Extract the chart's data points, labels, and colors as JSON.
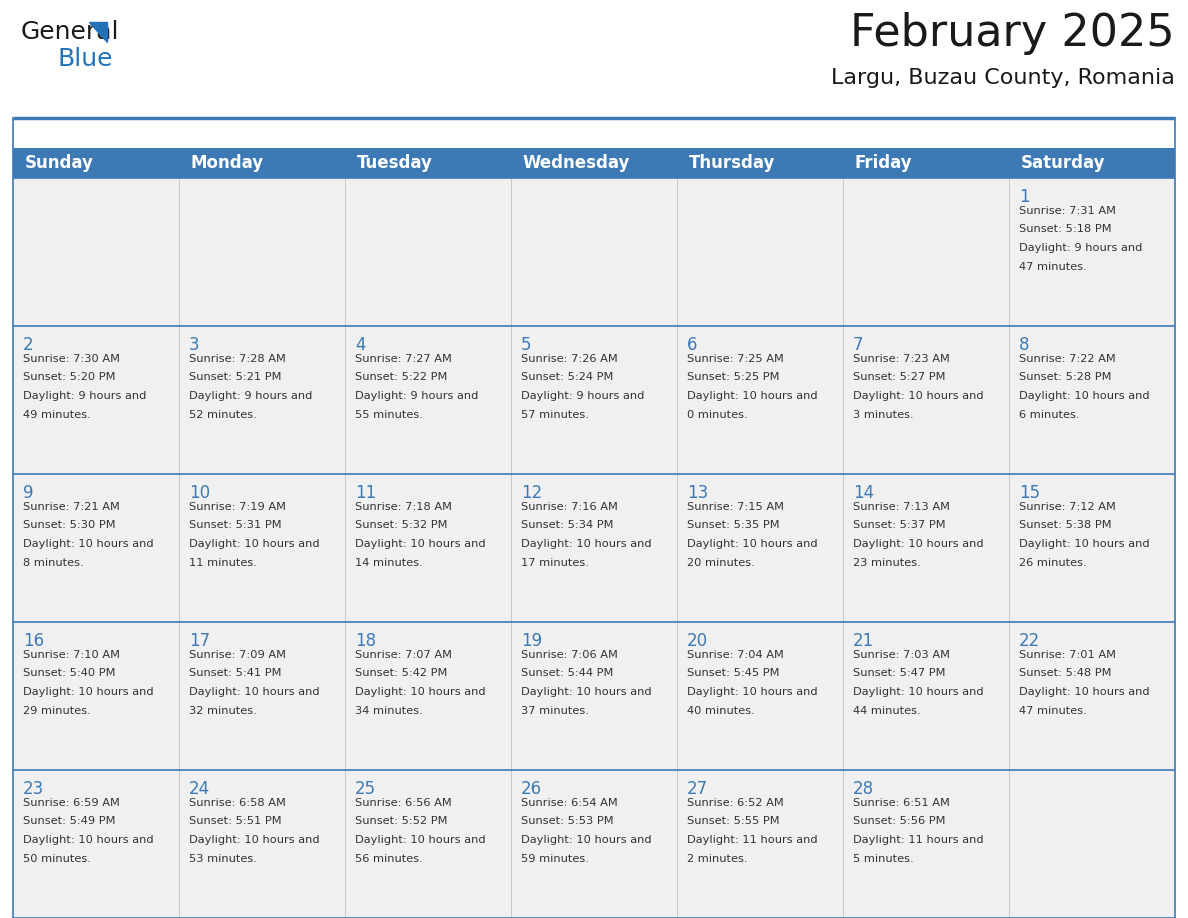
{
  "title": "February 2025",
  "subtitle": "Largu, Buzau County, Romania",
  "days_of_week": [
    "Sunday",
    "Monday",
    "Tuesday",
    "Wednesday",
    "Thursday",
    "Friday",
    "Saturday"
  ],
  "header_bg": "#3d7ab5",
  "header_text": "#ffffff",
  "cell_bg": "#f0f0f0",
  "border_color": "#3d7ab5",
  "day_number_color": "#3d7ab5",
  "text_color": "#333333",
  "calendar_data": [
    [
      null,
      null,
      null,
      null,
      null,
      null,
      {
        "day": "1",
        "sunrise": "7:31 AM",
        "sunset": "5:18 PM",
        "daylight": "9 hours and 47 minutes."
      }
    ],
    [
      {
        "day": "2",
        "sunrise": "7:30 AM",
        "sunset": "5:20 PM",
        "daylight": "9 hours and 49 minutes."
      },
      {
        "day": "3",
        "sunrise": "7:28 AM",
        "sunset": "5:21 PM",
        "daylight": "9 hours and 52 minutes."
      },
      {
        "day": "4",
        "sunrise": "7:27 AM",
        "sunset": "5:22 PM",
        "daylight": "9 hours and 55 minutes."
      },
      {
        "day": "5",
        "sunrise": "7:26 AM",
        "sunset": "5:24 PM",
        "daylight": "9 hours and 57 minutes."
      },
      {
        "day": "6",
        "sunrise": "7:25 AM",
        "sunset": "5:25 PM",
        "daylight": "10 hours and 0 minutes."
      },
      {
        "day": "7",
        "sunrise": "7:23 AM",
        "sunset": "5:27 PM",
        "daylight": "10 hours and 3 minutes."
      },
      {
        "day": "8",
        "sunrise": "7:22 AM",
        "sunset": "5:28 PM",
        "daylight": "10 hours and 6 minutes."
      }
    ],
    [
      {
        "day": "9",
        "sunrise": "7:21 AM",
        "sunset": "5:30 PM",
        "daylight": "10 hours and 8 minutes."
      },
      {
        "day": "10",
        "sunrise": "7:19 AM",
        "sunset": "5:31 PM",
        "daylight": "10 hours and 11 minutes."
      },
      {
        "day": "11",
        "sunrise": "7:18 AM",
        "sunset": "5:32 PM",
        "daylight": "10 hours and 14 minutes."
      },
      {
        "day": "12",
        "sunrise": "7:16 AM",
        "sunset": "5:34 PM",
        "daylight": "10 hours and 17 minutes."
      },
      {
        "day": "13",
        "sunrise": "7:15 AM",
        "sunset": "5:35 PM",
        "daylight": "10 hours and 20 minutes."
      },
      {
        "day": "14",
        "sunrise": "7:13 AM",
        "sunset": "5:37 PM",
        "daylight": "10 hours and 23 minutes."
      },
      {
        "day": "15",
        "sunrise": "7:12 AM",
        "sunset": "5:38 PM",
        "daylight": "10 hours and 26 minutes."
      }
    ],
    [
      {
        "day": "16",
        "sunrise": "7:10 AM",
        "sunset": "5:40 PM",
        "daylight": "10 hours and 29 minutes."
      },
      {
        "day": "17",
        "sunrise": "7:09 AM",
        "sunset": "5:41 PM",
        "daylight": "10 hours and 32 minutes."
      },
      {
        "day": "18",
        "sunrise": "7:07 AM",
        "sunset": "5:42 PM",
        "daylight": "10 hours and 34 minutes."
      },
      {
        "day": "19",
        "sunrise": "7:06 AM",
        "sunset": "5:44 PM",
        "daylight": "10 hours and 37 minutes."
      },
      {
        "day": "20",
        "sunrise": "7:04 AM",
        "sunset": "5:45 PM",
        "daylight": "10 hours and 40 minutes."
      },
      {
        "day": "21",
        "sunrise": "7:03 AM",
        "sunset": "5:47 PM",
        "daylight": "10 hours and 44 minutes."
      },
      {
        "day": "22",
        "sunrise": "7:01 AM",
        "sunset": "5:48 PM",
        "daylight": "10 hours and 47 minutes."
      }
    ],
    [
      {
        "day": "23",
        "sunrise": "6:59 AM",
        "sunset": "5:49 PM",
        "daylight": "10 hours and 50 minutes."
      },
      {
        "day": "24",
        "sunrise": "6:58 AM",
        "sunset": "5:51 PM",
        "daylight": "10 hours and 53 minutes."
      },
      {
        "day": "25",
        "sunrise": "6:56 AM",
        "sunset": "5:52 PM",
        "daylight": "10 hours and 56 minutes."
      },
      {
        "day": "26",
        "sunrise": "6:54 AM",
        "sunset": "5:53 PM",
        "daylight": "10 hours and 59 minutes."
      },
      {
        "day": "27",
        "sunrise": "6:52 AM",
        "sunset": "5:55 PM",
        "daylight": "11 hours and 2 minutes."
      },
      {
        "day": "28",
        "sunrise": "6:51 AM",
        "sunset": "5:56 PM",
        "daylight": "11 hours and 5 minutes."
      },
      null
    ]
  ],
  "title_fontsize": 32,
  "subtitle_fontsize": 16,
  "header_fontsize": 12,
  "day_number_fontsize": 12,
  "cell_text_fontsize": 8.2
}
